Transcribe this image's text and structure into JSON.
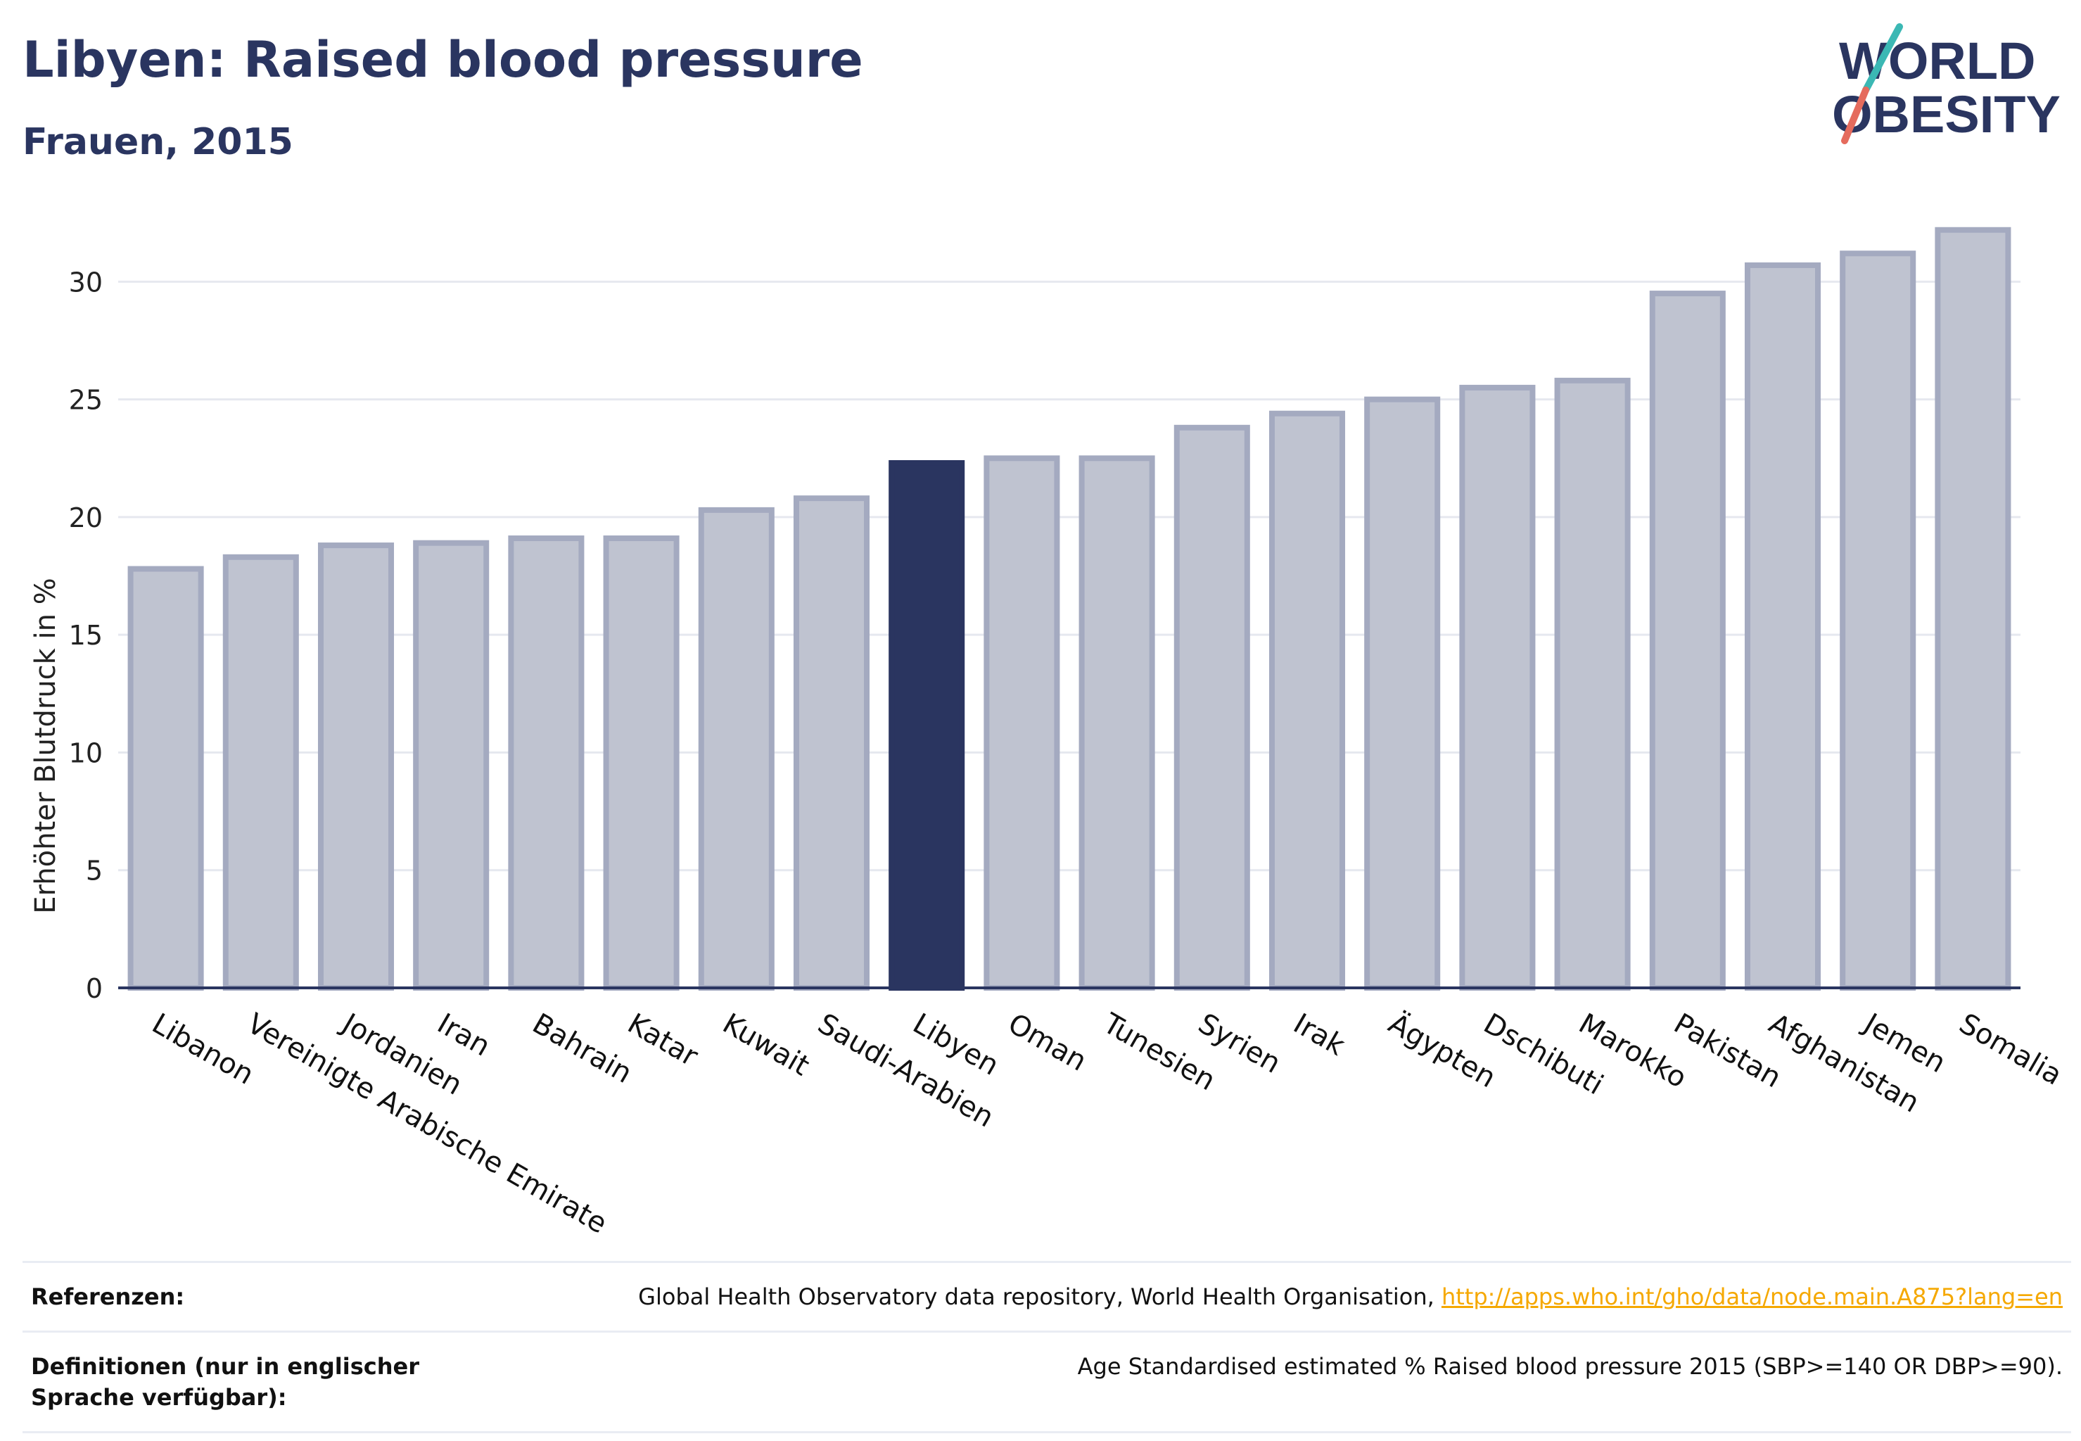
{
  "header": {
    "title": "Libyen: Raised blood pressure",
    "subtitle": "Frauen, 2015"
  },
  "logo": {
    "line1": "WORLD",
    "line2": "OBESITY"
  },
  "chart_data": {
    "type": "bar",
    "categories": [
      "Libanon",
      "Vereinigte Arabische Emirate",
      "Jordanien",
      "Iran",
      "Bahrain",
      "Katar",
      "Kuwait",
      "Saudi-Arabien",
      "Libyen",
      "Oman",
      "Tunesien",
      "Syrien",
      "Irak",
      "Ägypten",
      "Dschibuti",
      "Marokko",
      "Pakistan",
      "Afghanistan",
      "Jemen",
      "Somalia"
    ],
    "values": [
      17.8,
      18.3,
      18.8,
      18.9,
      19.1,
      19.1,
      20.3,
      20.8,
      22.3,
      22.5,
      22.5,
      23.8,
      24.4,
      25.0,
      25.5,
      25.8,
      29.5,
      30.7,
      31.2,
      32.2
    ],
    "highlight": "Libyen",
    "ylabel": "Erhöhter Blutdruck in %",
    "xlabel": "",
    "ylim": [
      0,
      33
    ],
    "yticks": [
      0,
      5,
      10,
      15,
      20,
      25,
      30
    ],
    "grid": true,
    "colors": {
      "bar": "#bfc3d0",
      "bar_edge": "#a4aac0",
      "highlight": "#2a3560",
      "grid": "#e6e8ef",
      "axis": "#2a3560"
    }
  },
  "references": [
    {
      "label": "Referenzen:",
      "text": "Global Health Observatory data repository, World Health Organisation, ",
      "link": "http://apps.who.int/gho/data/node.main.A875?lang=en"
    },
    {
      "label": "Definitionen (nur in englischer Sprache verfügbar):",
      "text": "Age Standardised estimated % Raised blood pressure 2015 (SBP>=140 OR DBP>=90).",
      "link": ""
    }
  ]
}
